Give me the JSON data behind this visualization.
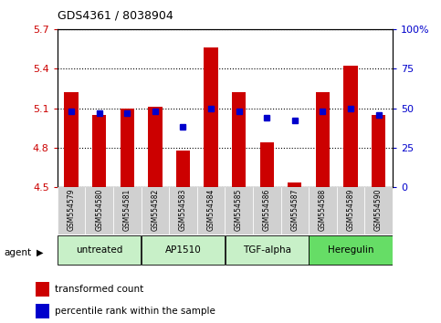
{
  "title": "GDS4361 / 8038904",
  "samples": [
    "GSM554579",
    "GSM554580",
    "GSM554581",
    "GSM554582",
    "GSM554583",
    "GSM554584",
    "GSM554585",
    "GSM554586",
    "GSM554587",
    "GSM554588",
    "GSM554589",
    "GSM554590"
  ],
  "red_values": [
    5.22,
    5.05,
    5.1,
    5.11,
    4.78,
    5.56,
    5.22,
    4.84,
    4.54,
    5.22,
    5.42,
    5.05
  ],
  "blue_values": [
    48,
    47,
    47,
    48,
    38,
    50,
    48,
    44,
    42,
    48,
    50,
    46
  ],
  "ylim_left": [
    4.5,
    5.7
  ],
  "ylim_right": [
    0,
    100
  ],
  "yticks_left": [
    4.5,
    4.8,
    5.1,
    5.4,
    5.7
  ],
  "ytick_labels_left": [
    "4.5",
    "4.8",
    "5.1",
    "5.4",
    "5.7"
  ],
  "yticks_right": [
    0,
    25,
    50,
    75,
    100
  ],
  "ytick_labels_right": [
    "0",
    "25",
    "50",
    "75",
    "100%"
  ],
  "groups": [
    {
      "label": "untreated",
      "start": 0,
      "end": 3,
      "color": "#c8f0c8"
    },
    {
      "label": "AP1510",
      "start": 3,
      "end": 6,
      "color": "#c8f0c8"
    },
    {
      "label": "TGF-alpha",
      "start": 6,
      "end": 9,
      "color": "#c8f0c8"
    },
    {
      "label": "Heregulin",
      "start": 9,
      "end": 12,
      "color": "#66dd66"
    }
  ],
  "bar_color": "#cc0000",
  "dot_color": "#0000cc",
  "bar_width": 0.5,
  "plot_bg": "#ffffff",
  "legend_red_label": "transformed count",
  "legend_blue_label": "percentile rank within the sample",
  "left_tick_color": "#cc0000",
  "right_tick_color": "#0000cc"
}
